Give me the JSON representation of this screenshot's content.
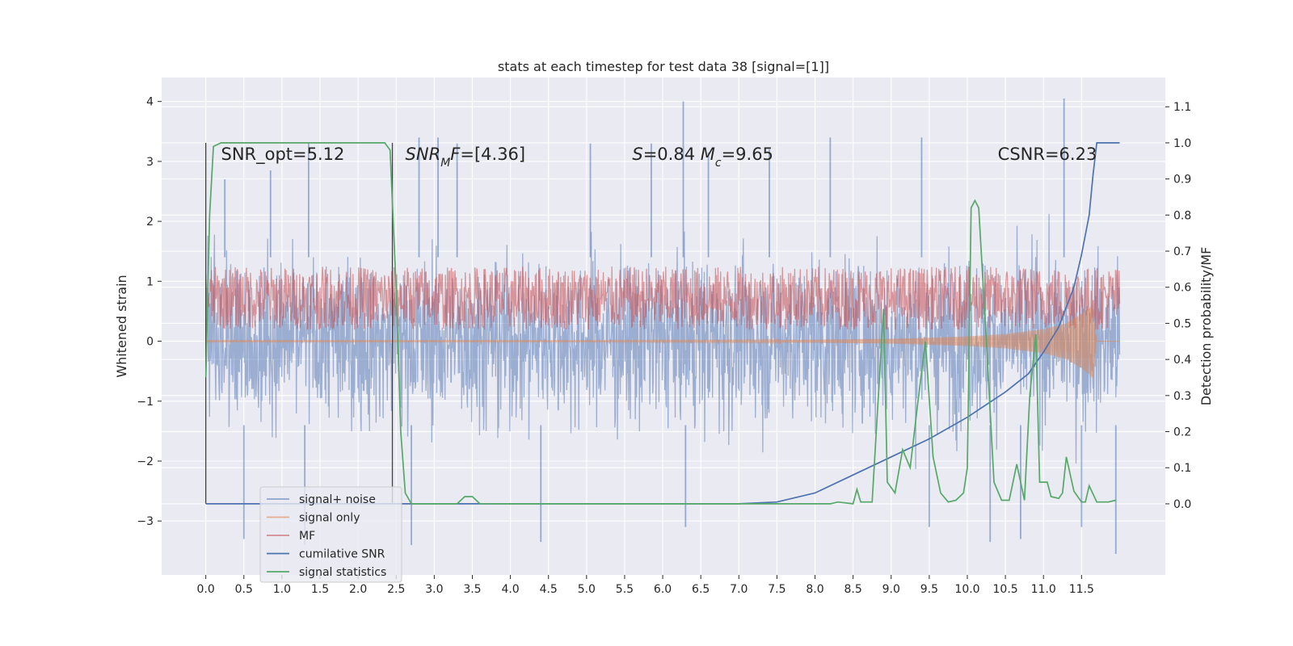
{
  "chart_data": {
    "type": "line",
    "title": "stats at each timestep for test data 38 [signal=[1]]",
    "xlabel": "",
    "ylabel": "Whitened strain",
    "y2label": "Detection probability/MF",
    "xlim": [
      -0.58,
      12.6
    ],
    "ylim": [
      -3.9,
      4.4
    ],
    "y2lim": [
      -0.197,
      1.181
    ],
    "xticks": [
      0.0,
      0.5,
      1.0,
      1.5,
      2.0,
      2.5,
      3.0,
      3.5,
      4.0,
      4.5,
      5.0,
      5.5,
      6.0,
      6.5,
      7.0,
      7.5,
      8.0,
      8.5,
      9.0,
      9.5,
      10.0,
      10.5,
      11.0,
      11.5
    ],
    "xtick_labels": [
      "0.0",
      "0.5",
      "1.0",
      "1.5",
      "2.0",
      "2.5",
      "3.0",
      "3.5",
      "4.0",
      "4.5",
      "5.0",
      "5.5",
      "6.0",
      "6.5",
      "7.0",
      "7.5",
      "8.0",
      "8.5",
      "9.0",
      "9.5",
      "10.0",
      "10.5",
      "11.0",
      "11.5"
    ],
    "yticks": [
      -3,
      -2,
      -1,
      0,
      1,
      2,
      3,
      4
    ],
    "ytick_labels": [
      "−3",
      "−2",
      "−1",
      "0",
      "1",
      "2",
      "3",
      "4"
    ],
    "y2ticks": [
      0.0,
      0.1,
      0.2,
      0.3,
      0.4,
      0.5,
      0.6,
      0.7,
      0.8,
      0.9,
      1.0,
      1.1
    ],
    "y2tick_labels": [
      "0.0",
      "0.1",
      "0.2",
      "0.3",
      "0.4",
      "0.5",
      "0.6",
      "0.7",
      "0.8",
      "0.9",
      "1.0",
      "1.1"
    ],
    "grid": true,
    "legend_position": "lower-left",
    "annotations": [
      {
        "text": "SNR_opt=5.12",
        "x": 0.2,
        "y": 3.12
      },
      {
        "text": "SNR_MF=[4.36]",
        "x": 2.62,
        "y": 3.12
      },
      {
        "text": "S=0.84   M_c=9.65",
        "x": 5.6,
        "y": 3.12
      },
      {
        "text": "CSNR=6.23",
        "x": 10.4,
        "y": 3.12
      }
    ],
    "annotation_display": [
      {
        "parts": [
          {
            "t": "SNR_opt=5.12"
          }
        ]
      },
      {
        "parts": [
          {
            "t": "SNR",
            "i": true
          },
          {
            "t": "M",
            "i": true,
            "sub": true
          },
          {
            "t": "F",
            "i": true
          },
          {
            "t": "=[4.36]"
          }
        ]
      },
      {
        "parts": [
          {
            "t": "S",
            "i": true
          },
          {
            "t": "=0.84   "
          },
          {
            "t": "M",
            "i": true
          },
          {
            "t": "c",
            "i": true,
            "sub": true
          },
          {
            "t": "=9.65"
          }
        ]
      },
      {
        "parts": [
          {
            "t": "CSNR=6.23"
          }
        ]
      }
    ],
    "vertical_lines": [
      0.0,
      2.45
    ],
    "series": [
      {
        "name": "signal+ noise",
        "axis": "left",
        "style": "noise band",
        "color": "#4c72b0",
        "x_range": [
          0.0,
          12.0
        ],
        "band_typical": [
          -2.0,
          2.0
        ],
        "x_peaks": [
          0.25,
          0.85,
          1.35,
          2.8,
          3.05,
          3.3,
          5.05,
          5.85,
          6.27,
          6.6,
          7.4,
          8.2,
          9.4,
          11.27
        ],
        "y_peaks": [
          2.7,
          2.85,
          3.3,
          3.4,
          3.4,
          3.3,
          3.3,
          3.3,
          4.0,
          3.15,
          3.2,
          3.4,
          3.4,
          4.05
        ],
        "x_troughs": [
          0.5,
          1.3,
          2.7,
          4.4,
          6.3,
          9.5,
          10.3,
          10.7,
          11.5,
          11.95
        ],
        "y_troughs": [
          -3.3,
          -3.4,
          -3.4,
          -3.35,
          -3.1,
          -3.1,
          -3.35,
          -3.3,
          -3.1,
          -3.55
        ]
      },
      {
        "name": "signal only",
        "axis": "left",
        "color": "#dd8452",
        "x": [
          0.0,
          5.0,
          7.0,
          8.0,
          9.0,
          9.5,
          10.0,
          10.5,
          11.0,
          11.3,
          11.5,
          11.6,
          11.65,
          11.7,
          12.0
        ],
        "amplitude": [
          0.01,
          0.01,
          0.015,
          0.025,
          0.04,
          0.06,
          0.08,
          0.12,
          0.2,
          0.3,
          0.45,
          0.55,
          0.62,
          0.0,
          0.0
        ]
      },
      {
        "name": "MF",
        "axis": "right",
        "color": "#c44e52",
        "style": "noise band",
        "x_range": [
          0.0,
          12.0
        ],
        "band": [
          0.5,
          0.64
        ]
      },
      {
        "name": "cumilative SNR",
        "axis": "right",
        "color": "#4c72b0",
        "x": [
          0.0,
          7.0,
          7.5,
          8.0,
          8.5,
          9.0,
          9.5,
          10.0,
          10.5,
          10.8,
          11.0,
          11.2,
          11.4,
          11.5,
          11.6,
          11.65,
          11.7,
          12.0
        ],
        "y": [
          0.0,
          0.0,
          0.005,
          0.03,
          0.08,
          0.13,
          0.18,
          0.24,
          0.31,
          0.36,
          0.42,
          0.49,
          0.6,
          0.69,
          0.8,
          0.91,
          1.0,
          1.0
        ]
      },
      {
        "name": "signal statistics",
        "axis": "right",
        "color": "#55a868",
        "x": [
          0.0,
          0.05,
          0.1,
          0.2,
          2.35,
          2.42,
          2.5,
          2.56,
          2.62,
          2.7,
          3.3,
          3.4,
          3.5,
          3.6,
          7.5,
          8.2,
          8.3,
          8.5,
          8.55,
          8.6,
          8.75,
          8.9,
          8.95,
          9.05,
          9.15,
          9.25,
          9.35,
          9.45,
          9.55,
          9.65,
          9.75,
          9.85,
          9.95,
          10.0,
          10.05,
          10.1,
          10.15,
          10.25,
          10.35,
          10.45,
          10.55,
          10.65,
          10.75,
          10.82,
          10.9,
          10.95,
          11.05,
          11.1,
          11.2,
          11.25,
          11.3,
          11.4,
          11.5,
          11.55,
          11.6,
          11.7,
          11.85,
          11.95
        ],
        "y": [
          0.35,
          0.8,
          0.99,
          1.0,
          1.0,
          0.98,
          0.6,
          0.2,
          0.03,
          0.0,
          0.0,
          0.02,
          0.02,
          0.0,
          0.0,
          0.0,
          0.005,
          0.0,
          0.04,
          0.005,
          0.005,
          0.54,
          0.06,
          0.03,
          0.15,
          0.1,
          0.28,
          0.45,
          0.13,
          0.03,
          0.005,
          0.01,
          0.03,
          0.1,
          0.82,
          0.84,
          0.82,
          0.45,
          0.06,
          0.01,
          0.01,
          0.11,
          0.01,
          0.3,
          0.47,
          0.06,
          0.06,
          0.02,
          0.015,
          0.03,
          0.13,
          0.035,
          0.005,
          0.005,
          0.05,
          0.005,
          0.005,
          0.01
        ]
      }
    ]
  }
}
